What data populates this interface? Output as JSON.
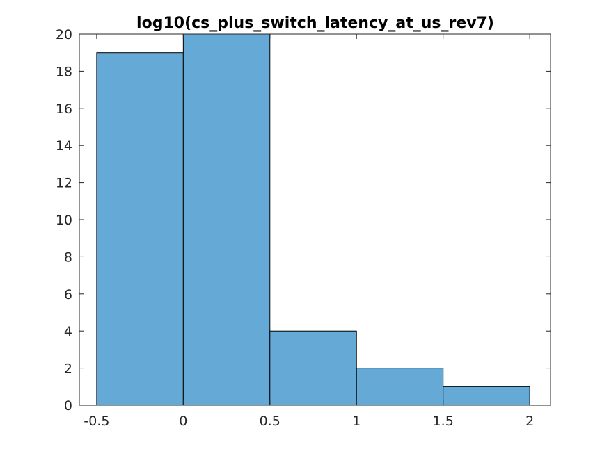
{
  "chart_data": {
    "type": "bar",
    "subtype": "histogram",
    "title": "log10(cs_plus_switch_latency_at_us_rev7)",
    "xlabel": "",
    "ylabel": "",
    "bin_edges": [
      -0.5,
      0,
      0.5,
      1,
      1.5,
      2
    ],
    "values": [
      19,
      20,
      4,
      2,
      1
    ],
    "xlim": [
      -0.6,
      2.12
    ],
    "ylim": [
      0,
      20
    ],
    "xticks": [
      -0.5,
      0,
      0.5,
      1,
      1.5,
      2
    ],
    "xtick_labels": [
      "-0.5",
      "0",
      "0.5",
      "1",
      "1.5",
      "2"
    ],
    "yticks": [
      0,
      2,
      4,
      6,
      8,
      10,
      12,
      14,
      16,
      18,
      20
    ],
    "ytick_labels": [
      "0",
      "2",
      "4",
      "6",
      "8",
      "10",
      "12",
      "14",
      "16",
      "18",
      "20"
    ],
    "bar_color": "#65a9d7",
    "edge_color": "#000000",
    "grid": false,
    "legend": "none"
  }
}
